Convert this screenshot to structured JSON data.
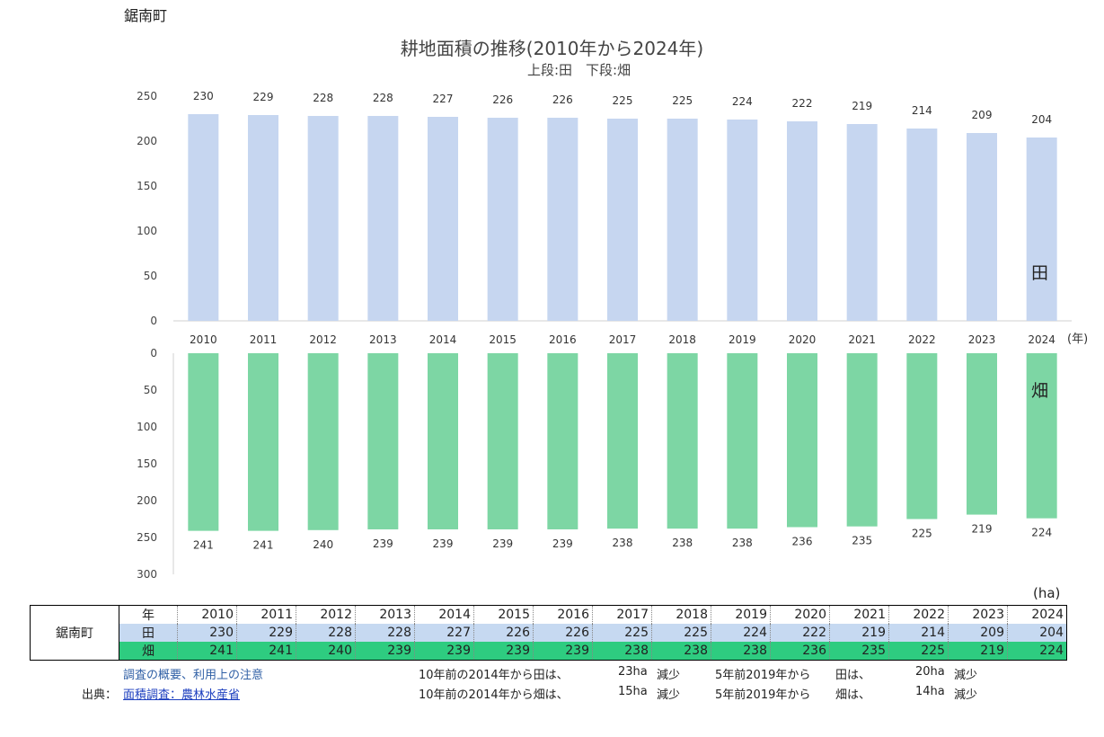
{
  "town": "鋸南町",
  "title": "耕地面積の推移(2010年から2024年)",
  "subtitle": "上段:田　下段:畑",
  "unit_year": "(年)",
  "unit_ha": "(ha)",
  "chart_data": [
    {
      "type": "bar",
      "series": [
        {
          "name": "田",
          "values": [
            230,
            229,
            228,
            228,
            227,
            226,
            226,
            225,
            225,
            224,
            222,
            219,
            214,
            209,
            204
          ]
        }
      ],
      "categories": [
        "2010",
        "2011",
        "2012",
        "2013",
        "2014",
        "2015",
        "2016",
        "2017",
        "2018",
        "2019",
        "2020",
        "2021",
        "2022",
        "2023",
        "2024"
      ],
      "ylim": [
        0,
        250
      ],
      "yticks": [
        0,
        50,
        100,
        150,
        200,
        250
      ],
      "color": "#c6d6f0"
    },
    {
      "type": "bar",
      "series": [
        {
          "name": "畑",
          "values": [
            241,
            241,
            240,
            239,
            239,
            239,
            239,
            238,
            238,
            238,
            236,
            235,
            225,
            219,
            224
          ]
        }
      ],
      "categories": [
        "2010",
        "2011",
        "2012",
        "2013",
        "2014",
        "2015",
        "2016",
        "2017",
        "2018",
        "2019",
        "2020",
        "2021",
        "2022",
        "2023",
        "2024"
      ],
      "ylim": [
        0,
        300
      ],
      "yticks": [
        0,
        50,
        100,
        150,
        200,
        250,
        300
      ],
      "inverted": true,
      "color": "#7dd6a4"
    }
  ],
  "table": {
    "year_label": "年",
    "town_label": "鋸南町",
    "rows": [
      {
        "label": "田",
        "values": [
          "230",
          "229",
          "228",
          "228",
          "227",
          "226",
          "226",
          "225",
          "225",
          "224",
          "222",
          "219",
          "214",
          "209",
          "204"
        ]
      },
      {
        "label": "畑",
        "values": [
          "241",
          "241",
          "240",
          "239",
          "239",
          "239",
          "239",
          "238",
          "238",
          "238",
          "236",
          "235",
          "225",
          "219",
          "224"
        ]
      }
    ]
  },
  "notes": {
    "survey_link": "調査の概要、利用上の注意",
    "source_label": "出典：",
    "source_link": "面積調査：農林水産省",
    "line1": {
      "a": "10年前の2014年から田は、",
      "b": "23ha",
      "c": "減少",
      "d": "5年前2019年から",
      "e": "田は、",
      "f": "20ha",
      "g": "減少"
    },
    "line2": {
      "a": "10年前の2014年から畑は、",
      "b": "15ha",
      "c": "減少",
      "d": "5年前2019年から",
      "e": "畑は、",
      "f": "14ha",
      "g": "減少"
    }
  }
}
